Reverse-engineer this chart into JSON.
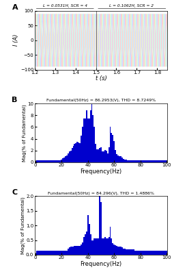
{
  "panel_A": {
    "label": "A",
    "xlabel": "t (s)",
    "ylabel": "I (A)",
    "xlim": [
      1.2,
      1.85
    ],
    "ylim": [
      -100,
      100
    ],
    "yticks": [
      -100,
      -50,
      0,
      50,
      100
    ],
    "xticks": [
      1.2,
      1.3,
      1.4,
      1.5,
      1.6,
      1.7,
      1.8
    ],
    "annotation_left": "L = 0.0531H, SCR = 4",
    "annotation_right": "L = 0.1062H, SCR = 2",
    "switch_time": 1.5,
    "freq": 50,
    "amplitude": 90
  },
  "panel_B": {
    "label": "B",
    "title": "Fundamental(50Hz) = 86.2953(V), THD = 8.7249%",
    "xlabel": "Frequency(Hz)",
    "ylabel": "Mag(% of Fundamental)",
    "ylim": [
      0,
      10
    ],
    "yticks": [
      0,
      2,
      4,
      6,
      8,
      10
    ],
    "xticks": [
      0,
      20,
      40,
      60,
      80,
      100
    ],
    "bar_color": "#0000cd",
    "freqs": [
      1,
      2,
      3,
      4,
      5,
      6,
      7,
      8,
      9,
      10,
      11,
      12,
      13,
      14,
      15,
      16,
      17,
      18,
      19,
      20,
      21,
      22,
      23,
      24,
      25,
      26,
      27,
      28,
      29,
      30,
      31,
      32,
      33,
      34,
      35,
      36,
      37,
      38,
      39,
      40,
      41,
      42,
      43,
      44,
      45,
      46,
      47,
      48,
      49,
      50,
      51,
      52,
      53,
      54,
      55,
      56,
      57,
      58,
      59,
      60,
      61,
      62,
      63,
      64,
      65,
      66,
      67,
      68,
      69,
      70,
      71,
      72,
      73,
      74,
      75,
      76,
      77,
      78,
      79,
      80,
      81,
      82,
      83,
      84,
      85,
      86,
      87,
      88,
      89,
      90,
      91,
      92,
      93,
      94,
      95,
      96,
      97,
      98,
      99,
      100
    ],
    "mags": [
      0.35,
      0.35,
      0.35,
      0.35,
      0.35,
      0.35,
      0.35,
      0.35,
      0.35,
      0.35,
      0.35,
      0.35,
      0.35,
      0.35,
      0.35,
      0.35,
      0.35,
      0.35,
      0.35,
      0.5,
      0.7,
      0.8,
      1.0,
      1.2,
      1.5,
      1.8,
      2.0,
      2.4,
      2.8,
      3.1,
      3.3,
      3.5,
      3.4,
      3.2,
      4.5,
      6.0,
      7.4,
      7.4,
      8.8,
      7.4,
      7.4,
      8.8,
      9.9,
      8.0,
      6.1,
      3.1,
      2.2,
      2.2,
      2.4,
      2.5,
      1.9,
      1.9,
      2.1,
      2.0,
      1.5,
      2.6,
      6.0,
      5.0,
      4.7,
      3.6,
      2.1,
      1.4,
      1.2,
      1.0,
      1.0,
      0.8,
      0.6,
      0.5,
      0.4,
      0.35,
      0.35,
      0.35,
      0.35,
      0.35,
      0.35,
      0.35,
      0.35,
      0.35,
      0.35,
      0.35,
      0.35,
      0.35,
      0.35,
      0.35,
      0.35,
      0.35,
      0.35,
      0.35,
      0.35,
      0.35,
      0.35,
      0.35,
      0.35,
      0.35,
      0.35,
      0.35,
      0.35,
      0.35,
      0.35,
      0.35
    ]
  },
  "panel_C": {
    "label": "C",
    "title": "Fundamental(50Hz) = 84.296(V), THD = 1.4886%",
    "xlabel": "Frequency(Hz)",
    "ylabel": "Mag(% of Fundamental)",
    "ylim": [
      0,
      2
    ],
    "yticks": [
      0,
      0.5,
      1.0,
      1.5,
      2.0
    ],
    "xticks": [
      0,
      20,
      40,
      60,
      80,
      100
    ],
    "bar_color": "#0000cd",
    "freqs": [
      1,
      2,
      3,
      4,
      5,
      6,
      7,
      8,
      9,
      10,
      11,
      12,
      13,
      14,
      15,
      16,
      17,
      18,
      19,
      20,
      21,
      22,
      23,
      24,
      25,
      26,
      27,
      28,
      29,
      30,
      31,
      32,
      33,
      34,
      35,
      36,
      37,
      38,
      39,
      40,
      41,
      42,
      43,
      44,
      45,
      46,
      47,
      48,
      49,
      50,
      51,
      52,
      53,
      54,
      55,
      56,
      57,
      58,
      59,
      60,
      61,
      62,
      63,
      64,
      65,
      66,
      67,
      68,
      69,
      70,
      71,
      72,
      73,
      74,
      75,
      76,
      77,
      78,
      79,
      80,
      81,
      82,
      83,
      84,
      85,
      86,
      87,
      88,
      89,
      90,
      91,
      92,
      93,
      94,
      95,
      96,
      97,
      98,
      99,
      100
    ],
    "mags": [
      0.15,
      0.15,
      0.15,
      0.15,
      0.15,
      0.15,
      0.15,
      0.15,
      0.15,
      0.15,
      0.15,
      0.15,
      0.15,
      0.15,
      0.15,
      0.15,
      0.15,
      0.15,
      0.15,
      0.15,
      0.15,
      0.15,
      0.15,
      0.15,
      0.2,
      0.25,
      0.28,
      0.28,
      0.28,
      0.3,
      0.3,
      0.3,
      0.3,
      0.3,
      0.35,
      0.42,
      0.6,
      0.7,
      0.8,
      1.35,
      1.05,
      0.7,
      0.5,
      0.5,
      0.55,
      0.55,
      0.55,
      0.55,
      2.0,
      1.8,
      0.55,
      0.55,
      0.6,
      0.55,
      0.55,
      0.6,
      0.95,
      0.55,
      0.4,
      0.35,
      0.32,
      0.3,
      0.28,
      0.27,
      0.27,
      0.25,
      0.22,
      0.2,
      0.18,
      0.18,
      0.18,
      0.18,
      0.18,
      0.18,
      0.18,
      0.15,
      0.15,
      0.15,
      0.15,
      0.15,
      0.15,
      0.15,
      0.15,
      0.15,
      0.15,
      0.15,
      0.15,
      0.15,
      0.15,
      0.15,
      0.15,
      0.15,
      0.15,
      0.15,
      0.15,
      0.15,
      0.15,
      0.15,
      0.15,
      0.15
    ]
  },
  "background_color": "#ffffff",
  "line_colors": [
    "#ff6b6b",
    "#6b9fff",
    "#90ee90"
  ]
}
